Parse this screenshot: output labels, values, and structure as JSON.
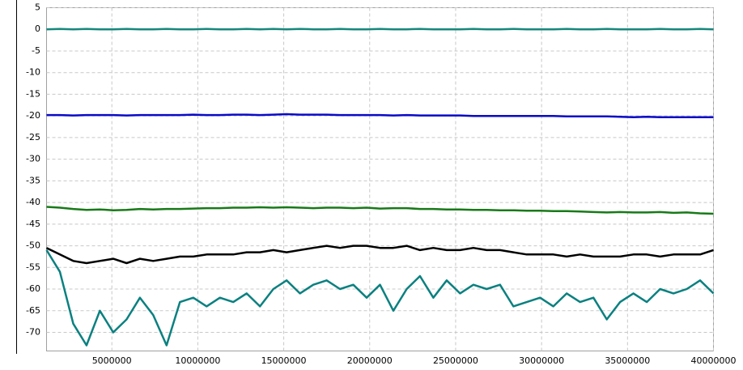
{
  "chart_data": {
    "type": "line",
    "grid": true,
    "x": [
      1200000,
      1976000,
      2752000,
      3528000,
      4304000,
      5080000,
      5856000,
      6632000,
      7408000,
      8184000,
      8960000,
      9736000,
      10512000,
      11288000,
      12064000,
      12840000,
      13616000,
      14392000,
      15168000,
      15944000,
      16720000,
      17496000,
      18272000,
      19048000,
      19824000,
      20600000,
      21376000,
      22152000,
      22928000,
      23704000,
      24480000,
      25256000,
      26032000,
      26808000,
      27584000,
      28360000,
      29136000,
      29912000,
      30688000,
      31464000,
      32240000,
      33016000,
      33792000,
      34568000,
      35344000,
      36120000,
      36896000,
      37672000,
      38448000,
      39224000,
      40000000
    ],
    "series": [
      {
        "color": "#16877c",
        "values": [
          0,
          0.1,
          0,
          0.1,
          0,
          0,
          0.1,
          0,
          0,
          0.1,
          0,
          0,
          0.1,
          0,
          0,
          0.1,
          0,
          0.1,
          0,
          0.1,
          0,
          0,
          0.1,
          0,
          0,
          0.1,
          0,
          0,
          0.1,
          0,
          0,
          0,
          0.1,
          0,
          0,
          0.1,
          0,
          0,
          0,
          0.1,
          0,
          0,
          0.1,
          0,
          0,
          0,
          0.1,
          0,
          0,
          0.1,
          0
        ]
      },
      {
        "color": "#0a0ac8",
        "values": [
          -19.8,
          -19.8,
          -19.9,
          -19.8,
          -19.8,
          -19.8,
          -19.9,
          -19.8,
          -19.8,
          -19.8,
          -19.8,
          -19.7,
          -19.8,
          -19.8,
          -19.7,
          -19.7,
          -19.8,
          -19.7,
          -19.6,
          -19.7,
          -19.7,
          -19.7,
          -19.8,
          -19.8,
          -19.8,
          -19.8,
          -19.9,
          -19.8,
          -19.9,
          -19.9,
          -19.9,
          -19.9,
          -20,
          -20,
          -20,
          -20,
          -20,
          -20,
          -20,
          -20.1,
          -20.1,
          -20.1,
          -20.1,
          -20.2,
          -20.3,
          -20.2,
          -20.3,
          -20.3,
          -20.3,
          -20.3,
          -20.3
        ]
      },
      {
        "color": "#187a18",
        "values": [
          -41,
          -41.2,
          -41.5,
          -41.7,
          -41.6,
          -41.8,
          -41.7,
          -41.5,
          -41.6,
          -41.5,
          -41.5,
          -41.4,
          -41.3,
          -41.3,
          -41.2,
          -41.2,
          -41.1,
          -41.2,
          -41.1,
          -41.2,
          -41.3,
          -41.2,
          -41.2,
          -41.3,
          -41.2,
          -41.4,
          -41.3,
          -41.3,
          -41.5,
          -41.5,
          -41.6,
          -41.6,
          -41.7,
          -41.7,
          -41.8,
          -41.8,
          -41.9,
          -41.9,
          -42,
          -42,
          -42.1,
          -42.2,
          -42.3,
          -42.2,
          -42.3,
          -42.3,
          -42.2,
          -42.4,
          -42.3,
          -42.5,
          -42.6
        ]
      },
      {
        "color": "#000000",
        "values": [
          -50.5,
          -52,
          -53.5,
          -54,
          -53.5,
          -53,
          -54,
          -53,
          -53.5,
          -53,
          -52.5,
          -52.5,
          -52,
          -52,
          -52,
          -51.5,
          -51.5,
          -51,
          -51.5,
          -51,
          -50.5,
          -50,
          -50.5,
          -50,
          -50,
          -50.5,
          -50.5,
          -50,
          -51,
          -50.5,
          -51,
          -51,
          -50.5,
          -51,
          -51,
          -51.5,
          -52,
          -52,
          -52,
          -52.5,
          -52,
          -52.5,
          -52.5,
          -52.5,
          -52,
          -52,
          -52.5,
          -52,
          -52,
          -52,
          -51
        ]
      },
      {
        "color": "#0b8080",
        "values": [
          -51,
          -56,
          -68,
          -73,
          -65,
          -70,
          -67,
          -62,
          -66,
          -73,
          -63,
          -62,
          -64,
          -62,
          -63,
          -61,
          -64,
          -60,
          -58,
          -61,
          -59,
          -58,
          -60,
          -59,
          -62,
          -59,
          -65,
          -60,
          -57,
          -62,
          -58,
          -61,
          -59,
          -60,
          -59,
          -64,
          -63,
          -62,
          -64,
          -61,
          -63,
          -62,
          -67,
          -63,
          -61,
          -63,
          -60,
          -61,
          -60,
          -58,
          -61
        ]
      }
    ],
    "xlim": [
      1200000,
      40000000
    ],
    "xticks": [
      5000000,
      10000000,
      15000000,
      20000000,
      25000000,
      30000000,
      35000000,
      40000000
    ],
    "ylim": [
      -74.3,
      5
    ],
    "yticks": [
      5,
      0,
      -5,
      -10,
      -15,
      -20,
      -25,
      -30,
      -35,
      -40,
      -45,
      -50,
      -55,
      -60,
      -65,
      -70
    ]
  }
}
